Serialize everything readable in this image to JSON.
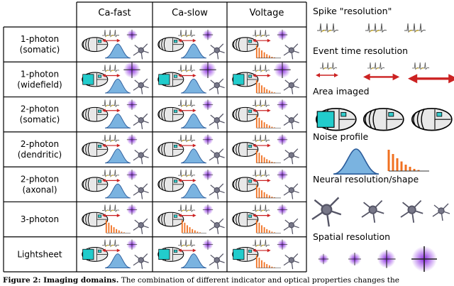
{
  "table": {
    "columns": [
      "Ca-fast",
      "Ca-slow",
      "Voltage"
    ],
    "rows": [
      [
        "1-photon",
        "(somatic)"
      ],
      [
        "1-photon",
        "(widefield)"
      ],
      [
        "2-photon",
        "(somatic)"
      ],
      [
        "2-photon",
        "(dendritic)"
      ],
      [
        "2-photon",
        "(axonal)"
      ],
      [
        "3-photon"
      ],
      [
        "Lightsheet"
      ]
    ]
  },
  "legend": [
    "Spike \"resolution\"",
    "Event time resolution",
    "Area imaged",
    "Noise profile",
    "Neural resolution/shape",
    "Spatial resolution"
  ],
  "caption": {
    "label": "Figure 2: Imaging domains.",
    "text": "The combination of different indicator and optical properties changes the"
  }
}
